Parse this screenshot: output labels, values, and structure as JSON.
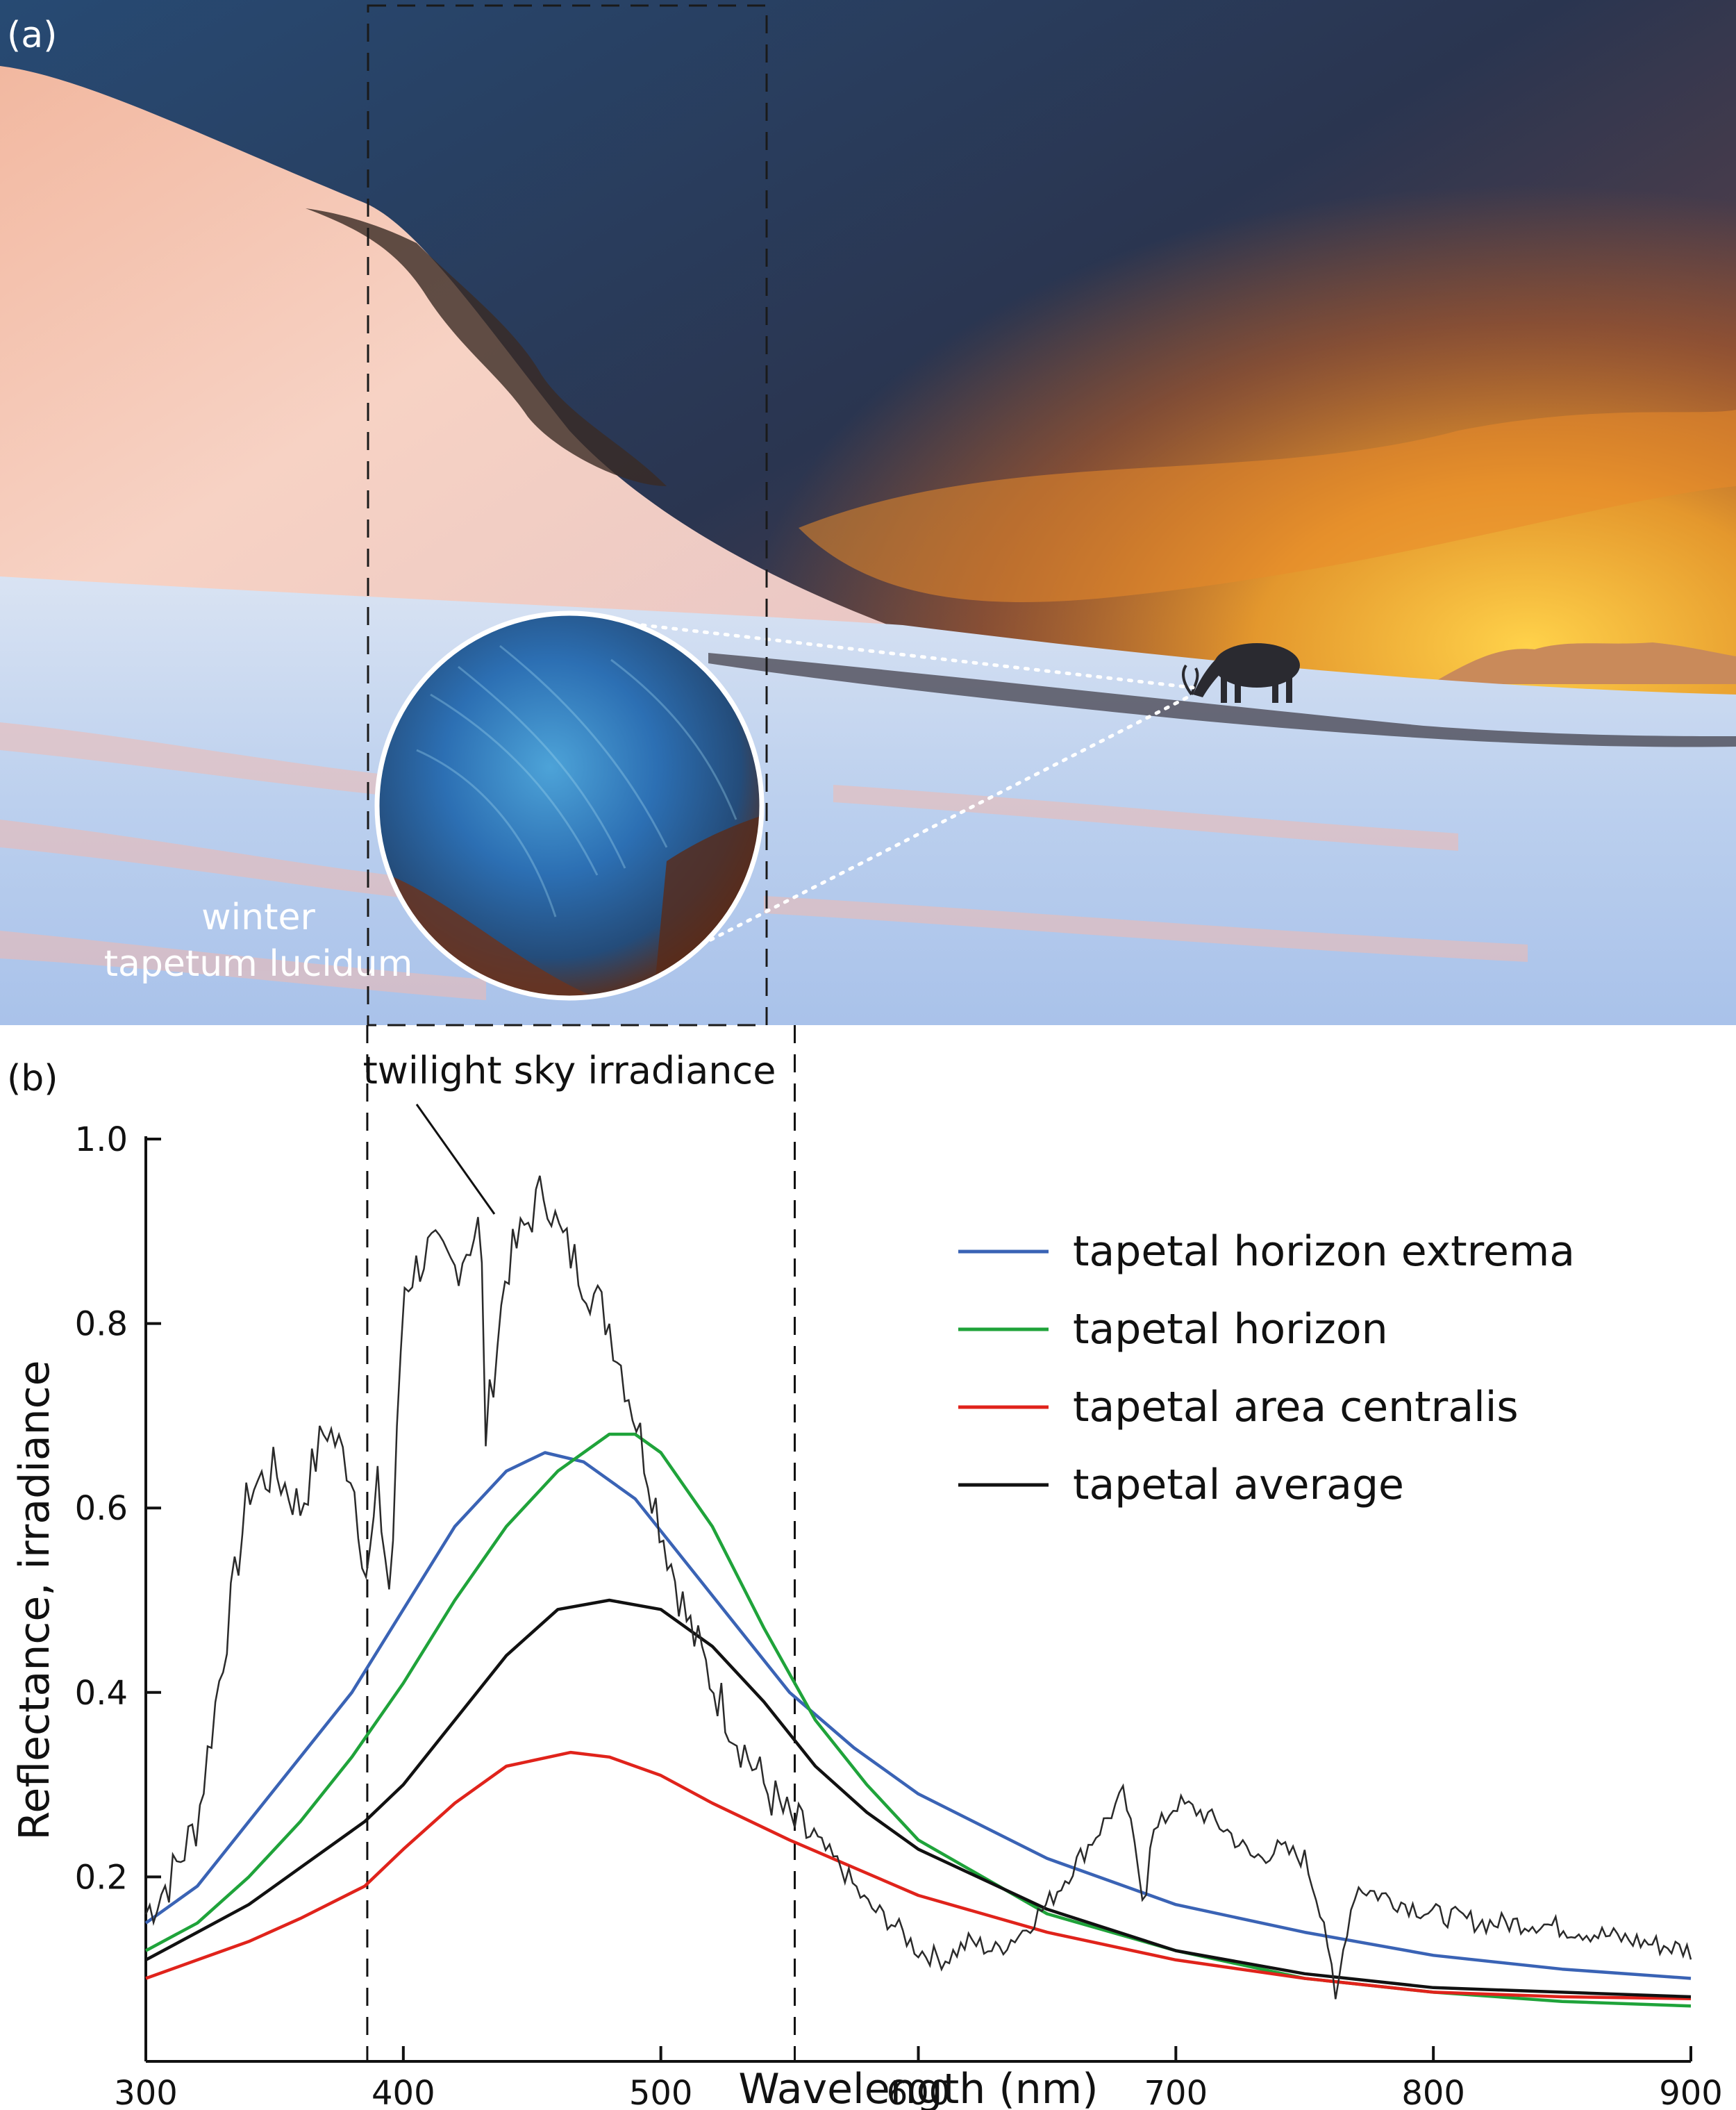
{
  "panel_a": {
    "label": "(a)",
    "inset_caption_line1": "winter",
    "inset_caption_line2": "tapetum lucidum",
    "colors": {
      "sky_top": "#2c4a6e",
      "sunset": "#f5a623",
      "snow": "#e9eef7",
      "tapetum": "#2f6fb0"
    }
  },
  "panel_b": {
    "label": "(b)",
    "annotation": "twilight sky irradiance"
  },
  "chart_data": {
    "type": "line",
    "xlabel": "Wavelength (nm)",
    "ylabel": "Reflectance, irradiance",
    "xlim": [
      300,
      900
    ],
    "ylim": [
      0,
      1.0
    ],
    "xticks": [
      300,
      400,
      500,
      600,
      700,
      800,
      900
    ],
    "yticks": [
      0.2,
      0.4,
      0.6,
      0.8,
      1.0
    ],
    "vlines": [
      386,
      552
    ],
    "legend_position": "top-right",
    "series": [
      {
        "name": "tapetal horizon extrema",
        "color": "#3a63b5",
        "x": [
          300,
          320,
          340,
          360,
          380,
          400,
          420,
          440,
          455,
          470,
          490,
          510,
          530,
          550,
          575,
          600,
          650,
          700,
          750,
          800,
          850,
          900
        ],
        "y": [
          0.15,
          0.19,
          0.26,
          0.33,
          0.4,
          0.49,
          0.58,
          0.64,
          0.66,
          0.65,
          0.61,
          0.54,
          0.47,
          0.4,
          0.34,
          0.29,
          0.22,
          0.17,
          0.14,
          0.115,
          0.1,
          0.09
        ]
      },
      {
        "name": "tapetal horizon",
        "color": "#1fa33a",
        "x": [
          300,
          320,
          340,
          360,
          380,
          400,
          420,
          440,
          460,
          480,
          490,
          500,
          520,
          540,
          560,
          580,
          600,
          650,
          700,
          750,
          800,
          850,
          900
        ],
        "y": [
          0.12,
          0.15,
          0.2,
          0.26,
          0.33,
          0.41,
          0.5,
          0.58,
          0.64,
          0.68,
          0.68,
          0.66,
          0.58,
          0.47,
          0.37,
          0.3,
          0.24,
          0.16,
          0.12,
          0.09,
          0.075,
          0.065,
          0.06
        ]
      },
      {
        "name": "tapetal area centralis",
        "color": "#e0231b",
        "x": [
          300,
          320,
          340,
          360,
          385,
          400,
          420,
          440,
          465,
          480,
          500,
          520,
          550,
          600,
          650,
          700,
          750,
          800,
          850,
          900
        ],
        "y": [
          0.09,
          0.11,
          0.13,
          0.155,
          0.19,
          0.23,
          0.28,
          0.32,
          0.335,
          0.33,
          0.31,
          0.28,
          0.24,
          0.18,
          0.14,
          0.11,
          0.09,
          0.075,
          0.07,
          0.068
        ]
      },
      {
        "name": "tapetal average",
        "color": "#111111",
        "x": [
          300,
          320,
          340,
          360,
          385,
          400,
          420,
          440,
          460,
          480,
          500,
          520,
          540,
          560,
          580,
          600,
          650,
          700,
          750,
          800,
          850,
          900
        ],
        "y": [
          0.11,
          0.14,
          0.17,
          0.21,
          0.26,
          0.3,
          0.37,
          0.44,
          0.49,
          0.5,
          0.49,
          0.45,
          0.39,
          0.32,
          0.27,
          0.23,
          0.165,
          0.12,
          0.095,
          0.08,
          0.075,
          0.07
        ]
      },
      {
        "name": "",
        "color": "#2a2a2a",
        "x": [
          300,
          310,
          320,
          330,
          340,
          350,
          360,
          370,
          380,
          386,
          390,
          395,
          400,
          410,
          420,
          430,
          432,
          440,
          450,
          455,
          460,
          470,
          480,
          490,
          500,
          510,
          520,
          530,
          540,
          550,
          560,
          570,
          580,
          590,
          600,
          610,
          620,
          630,
          640,
          650,
          660,
          670,
          680,
          688,
          690,
          700,
          710,
          720,
          730,
          740,
          750,
          758,
          762,
          766,
          770,
          780,
          790,
          800,
          820,
          840,
          860,
          880,
          900
        ],
        "y": [
          0.16,
          0.2,
          0.26,
          0.44,
          0.62,
          0.64,
          0.6,
          0.69,
          0.64,
          0.52,
          0.62,
          0.5,
          0.84,
          0.88,
          0.86,
          0.91,
          0.68,
          0.86,
          0.92,
          0.95,
          0.9,
          0.85,
          0.8,
          0.7,
          0.58,
          0.48,
          0.41,
          0.35,
          0.3,
          0.26,
          0.24,
          0.21,
          0.17,
          0.15,
          0.12,
          0.11,
          0.13,
          0.12,
          0.14,
          0.17,
          0.21,
          0.25,
          0.29,
          0.17,
          0.24,
          0.28,
          0.27,
          0.25,
          0.22,
          0.23,
          0.22,
          0.15,
          0.06,
          0.14,
          0.19,
          0.18,
          0.17,
          0.16,
          0.15,
          0.15,
          0.14,
          0.13,
          0.12
        ]
      }
    ]
  }
}
